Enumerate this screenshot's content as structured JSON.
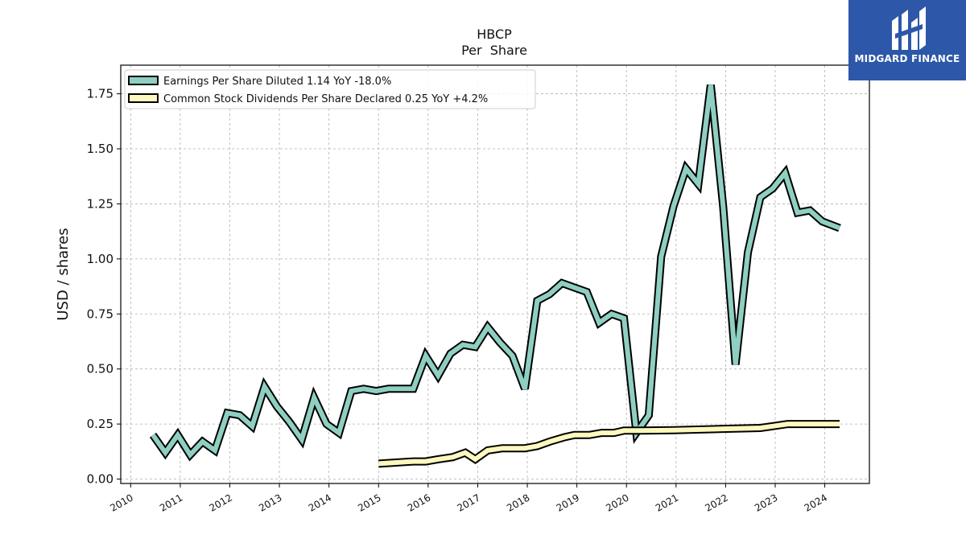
{
  "brand": {
    "name": "MIDGARD FINANCE",
    "color": "#2d57a8"
  },
  "chart_data": {
    "type": "line",
    "title": "HBCP",
    "subtitle": "Per  Share",
    "ylabel": "USD / shares",
    "xlabel": "",
    "ylim": [
      -0.02,
      1.88
    ],
    "xlim": [
      2009.8,
      2024.9
    ],
    "yticks": [
      "0.00",
      "0.25",
      "0.50",
      "0.75",
      "1.00",
      "1.25",
      "1.50",
      "1.75"
    ],
    "ytick_values": [
      0,
      0.25,
      0.5,
      0.75,
      1.0,
      1.25,
      1.5,
      1.75
    ],
    "xticks": [
      "2010",
      "2011",
      "2012",
      "2013",
      "2014",
      "2015",
      "2016",
      "2017",
      "2018",
      "2019",
      "2020",
      "2021",
      "2022",
      "2023",
      "2024"
    ],
    "grid": true,
    "legend_position": "top-left",
    "series": [
      {
        "name": "Earnings Per Share Diluted  1.14 YoY -18.0%",
        "color": "#8ecfc2",
        "points": [
          [
            2010.45,
            0.2
          ],
          [
            2010.7,
            0.12
          ],
          [
            2010.95,
            0.2
          ],
          [
            2011.2,
            0.11
          ],
          [
            2011.45,
            0.17
          ],
          [
            2011.7,
            0.13
          ],
          [
            2011.95,
            0.3
          ],
          [
            2012.2,
            0.29
          ],
          [
            2012.45,
            0.24
          ],
          [
            2012.7,
            0.42
          ],
          [
            2012.95,
            0.33
          ],
          [
            2013.2,
            0.26
          ],
          [
            2013.45,
            0.18
          ],
          [
            2013.7,
            0.37
          ],
          [
            2013.95,
            0.25
          ],
          [
            2014.2,
            0.21
          ],
          [
            2014.45,
            0.4
          ],
          [
            2014.7,
            0.41
          ],
          [
            2014.95,
            0.4
          ],
          [
            2015.2,
            0.41
          ],
          [
            2015.45,
            0.41
          ],
          [
            2015.7,
            0.41
          ],
          [
            2015.95,
            0.56
          ],
          [
            2016.2,
            0.47
          ],
          [
            2016.45,
            0.57
          ],
          [
            2016.7,
            0.61
          ],
          [
            2016.95,
            0.6
          ],
          [
            2017.2,
            0.69
          ],
          [
            2017.45,
            0.62
          ],
          [
            2017.7,
            0.56
          ],
          [
            2017.95,
            0.41
          ],
          [
            2018.2,
            0.81
          ],
          [
            2018.45,
            0.84
          ],
          [
            2018.7,
            0.89
          ],
          [
            2018.95,
            0.87
          ],
          [
            2019.2,
            0.85
          ],
          [
            2019.45,
            0.71
          ],
          [
            2019.7,
            0.75
          ],
          [
            2019.95,
            0.73
          ],
          [
            2020.2,
            0.21
          ],
          [
            2020.45,
            0.29
          ],
          [
            2020.7,
            1.01
          ],
          [
            2020.95,
            1.24
          ],
          [
            2021.2,
            1.41
          ],
          [
            2021.45,
            1.34
          ],
          [
            2021.7,
            1.79
          ],
          [
            2021.95,
            1.24
          ],
          [
            2022.2,
            0.52
          ],
          [
            2022.45,
            1.03
          ],
          [
            2022.7,
            1.28
          ],
          [
            2022.95,
            1.32
          ],
          [
            2023.2,
            1.39
          ],
          [
            2023.45,
            1.21
          ],
          [
            2023.7,
            1.22
          ],
          [
            2023.95,
            1.17
          ],
          [
            2024.3,
            1.14
          ]
        ]
      },
      {
        "name": "Common Stock Dividends Per Share Declared  0.25 YoY +4.2%",
        "color": "#fdf8bd",
        "points": [
          [
            2015.0,
            0.07
          ],
          [
            2015.35,
            0.075
          ],
          [
            2015.7,
            0.08
          ],
          [
            2015.95,
            0.08
          ],
          [
            2016.2,
            0.09
          ],
          [
            2016.5,
            0.1
          ],
          [
            2016.75,
            0.12
          ],
          [
            2016.95,
            0.09
          ],
          [
            2017.2,
            0.13
          ],
          [
            2017.5,
            0.14
          ],
          [
            2017.95,
            0.14
          ],
          [
            2018.2,
            0.15
          ],
          [
            2018.45,
            0.17
          ],
          [
            2018.75,
            0.19
          ],
          [
            2018.95,
            0.2
          ],
          [
            2019.25,
            0.2
          ],
          [
            2019.5,
            0.21
          ],
          [
            2019.75,
            0.21
          ],
          [
            2019.95,
            0.22
          ],
          [
            2020.3,
            0.22
          ],
          [
            2020.95,
            0.222
          ],
          [
            2021.95,
            0.228
          ],
          [
            2022.7,
            0.232
          ],
          [
            2022.95,
            0.24
          ],
          [
            2023.25,
            0.25
          ],
          [
            2023.7,
            0.25
          ],
          [
            2024.3,
            0.25
          ]
        ]
      }
    ]
  }
}
